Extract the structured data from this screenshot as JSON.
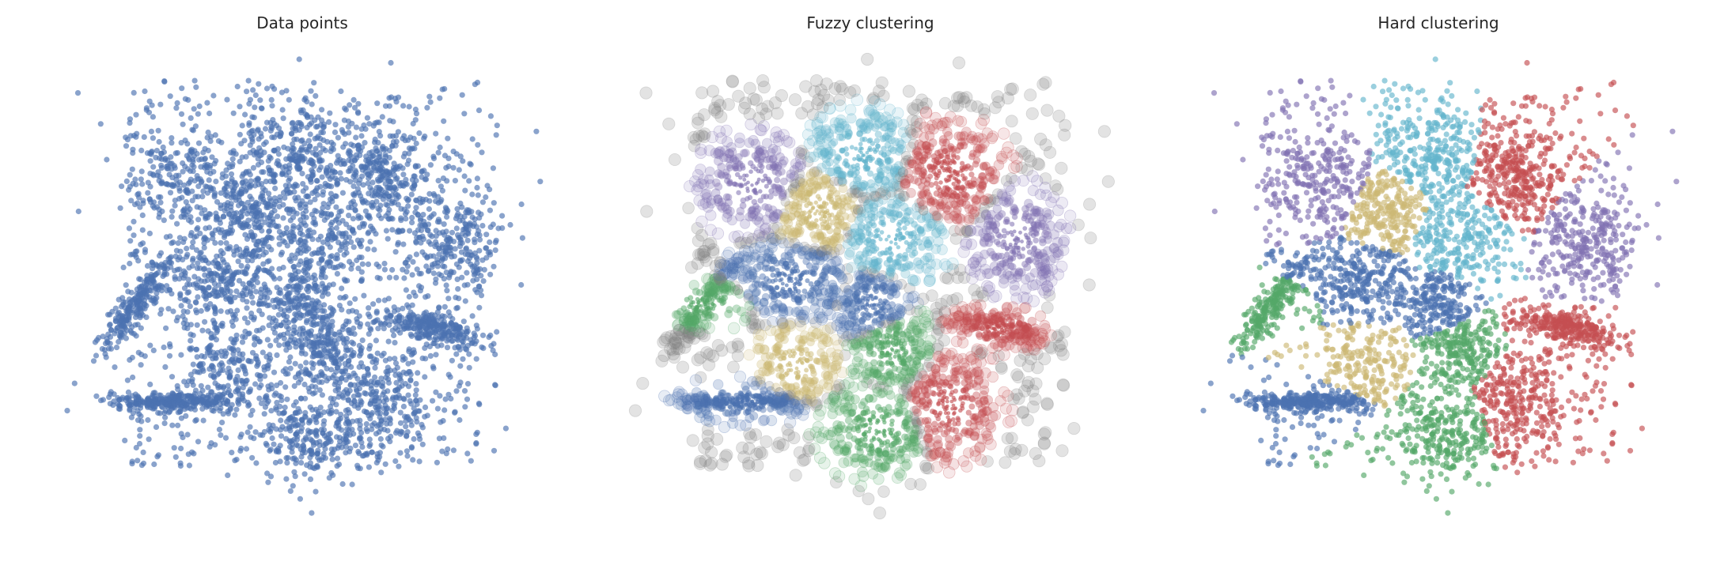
{
  "figure": {
    "background": "#ffffff",
    "marker_opacity": 0.65,
    "palette": {
      "blue": "#4c72b0",
      "green": "#55a868",
      "red": "#c44e52",
      "purple": "#8172b2",
      "yellow": "#ccb974",
      "cyan": "#64b5cd",
      "noise": "#7f7f7f"
    }
  },
  "chart_data": [
    {
      "type": "scatter",
      "title": "Data points",
      "xlabel": "",
      "ylabel": "",
      "axes": "off",
      "grid": false,
      "legend": "none",
      "xlim": [
        0,
        10
      ],
      "ylim": [
        0,
        10
      ],
      "color_mode": "single",
      "series": [
        {
          "color": "blue",
          "points_approx": 4000
        }
      ]
    },
    {
      "type": "scatter",
      "title": "Fuzzy clustering",
      "xlabel": "",
      "ylabel": "",
      "axes": "off",
      "grid": false,
      "legend": "none",
      "xlim": [
        0,
        10
      ],
      "ylim": [
        0,
        10
      ],
      "color_mode": "soft-membership",
      "noise_color": "noise"
    },
    {
      "type": "scatter",
      "title": "Hard clustering",
      "xlabel": "",
      "ylabel": "",
      "axes": "off",
      "grid": false,
      "legend": "none",
      "xlim": [
        0,
        10
      ],
      "ylim": [
        0,
        10
      ],
      "color_mode": "nearest-cluster"
    }
  ],
  "clusters": [
    {
      "id": 1,
      "color": "purple",
      "shape": "blob",
      "center": [
        2.5,
        7.1
      ],
      "spread": [
        0.6,
        0.55
      ],
      "count": 200
    },
    {
      "id": 2,
      "color": "cyan",
      "shape": "blob",
      "center": [
        4.8,
        7.7
      ],
      "spread": [
        0.6,
        0.5
      ],
      "count": 230
    },
    {
      "id": 3,
      "color": "red",
      "shape": "blob",
      "center": [
        6.6,
        7.3
      ],
      "spread": [
        0.6,
        0.6
      ],
      "count": 300
    },
    {
      "id": 4,
      "color": "yellow",
      "shape": "blob",
      "center": [
        3.9,
        6.5
      ],
      "spread": [
        0.5,
        0.5
      ],
      "count": 230
    },
    {
      "id": 5,
      "color": "cyan",
      "shape": "blob",
      "center": [
        5.4,
        5.9
      ],
      "spread": [
        0.6,
        0.55
      ],
      "count": 230
    },
    {
      "id": 6,
      "color": "purple",
      "shape": "blob",
      "center": [
        8.0,
        5.9
      ],
      "spread": [
        0.5,
        0.6
      ],
      "count": 230
    },
    {
      "id": 7,
      "color": "blue",
      "shape": "blob",
      "center": [
        3.3,
        5.0
      ],
      "spread": [
        0.65,
        0.45
      ],
      "count": 260
    },
    {
      "id": 8,
      "color": "blue",
      "shape": "blob",
      "center": [
        5.0,
        4.5
      ],
      "spread": [
        0.4,
        0.45
      ],
      "count": 180
    },
    {
      "id": 9,
      "color": "green",
      "shape": "elongated",
      "center": [
        1.5,
        4.5
      ],
      "spread": [
        0.6,
        0.14
      ],
      "angle_deg": 55,
      "count": 240
    },
    {
      "id": 10,
      "color": "red",
      "shape": "elongated",
      "center": [
        7.6,
        4.0
      ],
      "spread": [
        0.55,
        0.16
      ],
      "angle_deg": -14,
      "count": 260
    },
    {
      "id": 11,
      "color": "yellow",
      "shape": "blob",
      "center": [
        3.4,
        3.2
      ],
      "spread": [
        0.5,
        0.45
      ],
      "count": 180
    },
    {
      "id": 12,
      "color": "green",
      "shape": "blob",
      "center": [
        5.4,
        3.5
      ],
      "spread": [
        0.45,
        0.45
      ],
      "count": 210
    },
    {
      "id": 13,
      "color": "blue",
      "shape": "elongated",
      "center": [
        2.3,
        2.4
      ],
      "spread": [
        0.7,
        0.1
      ],
      "angle_deg": 0,
      "count": 300
    },
    {
      "id": 14,
      "color": "green",
      "shape": "blob",
      "center": [
        5.1,
        1.8
      ],
      "spread": [
        0.6,
        0.55
      ],
      "count": 260
    },
    {
      "id": 15,
      "color": "red",
      "shape": "blob",
      "center": [
        6.6,
        2.3
      ],
      "spread": [
        0.55,
        0.6
      ],
      "count": 260
    }
  ],
  "background_noise": {
    "count": 900,
    "region_x": [
      1.2,
      9.0
    ],
    "region_y": [
      1.0,
      9.3
    ]
  },
  "outliers": {
    "count": 30,
    "region_x": [
      0.0,
      10.0
    ],
    "region_y": [
      0.0,
      10.0
    ]
  }
}
